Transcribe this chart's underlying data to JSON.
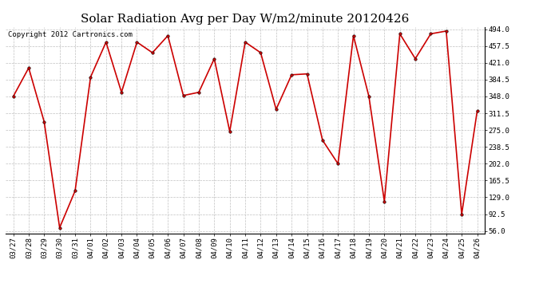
{
  "title": "Solar Radiation Avg per Day W/m2/minute 20120426",
  "copyright": "Copyright 2012 Cartronics.com",
  "dates": [
    "03/27",
    "03/28",
    "03/29",
    "03/30",
    "03/31",
    "04/01",
    "04/02",
    "04/03",
    "04/04",
    "04/05",
    "04/06",
    "04/07",
    "04/08",
    "04/09",
    "04/10",
    "04/11",
    "04/12",
    "04/13",
    "04/14",
    "04/15",
    "04/16",
    "04/17",
    "04/18",
    "04/19",
    "04/20",
    "04/21",
    "04/22",
    "04/23",
    "04/24",
    "04/25",
    "04/26"
  ],
  "values": [
    348,
    410,
    293,
    63,
    143,
    390,
    466,
    357,
    466,
    443,
    480,
    350,
    357,
    430,
    272,
    466,
    443,
    320,
    395,
    397,
    253,
    202,
    480,
    348,
    120,
    484,
    430,
    484,
    490,
    92,
    316
  ],
  "y_ticks": [
    56.0,
    92.5,
    129.0,
    165.5,
    202.0,
    238.5,
    275.0,
    311.5,
    348.0,
    384.5,
    421.0,
    457.5,
    494.0
  ],
  "ylim_min": 56.0,
  "ylim_max": 494.0,
  "line_color": "#cc0000",
  "marker_color": "#cc0000",
  "bg_color": "#ffffff",
  "grid_color": "#c0c0c0",
  "title_fontsize": 11,
  "tick_fontsize": 6.5,
  "copyright_fontsize": 6.5
}
